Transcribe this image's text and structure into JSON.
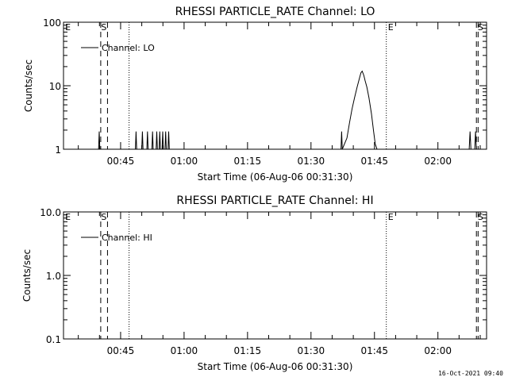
{
  "footer": {
    "timestamp": "16-Oct-2021 09:40"
  },
  "chart_data": [
    {
      "type": "line",
      "title": "RHESSI PARTICLE_RATE Channel: LO",
      "xlabel": "Start Time (06-Aug-06 00:31:30)",
      "ylabel": "Counts/sec",
      "x_unit": "minutes since 00:31:30",
      "xlim": [
        0,
        100
      ],
      "ylim": [
        1,
        100
      ],
      "yscale": "log",
      "x_ticks": [
        {
          "x": 13.5,
          "label": "00:45"
        },
        {
          "x": 28.5,
          "label": "01:00"
        },
        {
          "x": 43.5,
          "label": "01:15"
        },
        {
          "x": 58.5,
          "label": "01:30"
        },
        {
          "x": 73.5,
          "label": "01:45"
        },
        {
          "x": 88.5,
          "label": "02:00"
        }
      ],
      "y_ticks": [
        {
          "y": 1,
          "label": "1"
        },
        {
          "y": 10,
          "label": "10"
        },
        {
          "y": 100,
          "label": "100"
        }
      ],
      "legend": {
        "position": "top-left",
        "entries": [
          "Channel: LO"
        ]
      },
      "annotations": [
        {
          "label": "E",
          "x": 0.2
        },
        {
          "label": "S",
          "x": 8.7
        },
        {
          "label": "E",
          "x": 76.5
        },
        {
          "label": "S",
          "x": 97.7
        }
      ],
      "vlines": [
        {
          "x": 8.8,
          "style": "dashed"
        },
        {
          "x": 10.4,
          "style": "dashed"
        },
        {
          "x": 15.5,
          "style": "dotted"
        },
        {
          "x": 76.3,
          "style": "dotted"
        },
        {
          "x": 97.6,
          "style": "dashed"
        },
        {
          "x": 98.0,
          "style": "dashed"
        }
      ],
      "series": [
        {
          "name": "Channel: LO",
          "x": [
            0,
            8.3,
            8.45,
            8.6,
            17.0,
            17.15,
            17.3,
            18.5,
            18.65,
            18.8,
            19.7,
            19.85,
            20.0,
            20.9,
            21.05,
            21.2,
            21.9,
            22.05,
            22.2,
            22.6,
            22.75,
            22.9,
            23.3,
            23.45,
            23.6,
            24.0,
            24.15,
            24.3,
            24.7,
            24.85,
            25.0,
            65.6,
            65.75,
            65.9,
            67.0,
            67.6,
            68.2,
            68.8,
            69.4,
            70.0,
            70.3,
            70.6,
            71.0,
            71.3,
            71.7,
            72.2,
            72.8,
            73.3,
            73.7,
            74.1,
            95.9,
            96.1,
            96.3,
            97.2,
            97.4,
            97.6,
            100
          ],
          "y": [
            1,
            1,
            1.9,
            1,
            1,
            1.9,
            1,
            1,
            1.9,
            1,
            1,
            1.9,
            1,
            1,
            1.9,
            1,
            1,
            1.9,
            1,
            1,
            1.9,
            1,
            1,
            1.9,
            1,
            1,
            1.9,
            1,
            1,
            1.9,
            1,
            1,
            1.9,
            1,
            1.5,
            2.6,
            4.3,
            6.5,
            9.5,
            13.5,
            16.0,
            17.0,
            14.5,
            12.0,
            9.5,
            6.5,
            3.6,
            1.9,
            1.2,
            1,
            1,
            1.9,
            1,
            1,
            1.9,
            1,
            1
          ]
        }
      ]
    },
    {
      "type": "line",
      "title": "RHESSI PARTICLE_RATE Channel: HI",
      "xlabel": "Start Time (06-Aug-06 00:31:30)",
      "ylabel": "Counts/sec",
      "x_unit": "minutes since 00:31:30",
      "xlim": [
        0,
        100
      ],
      "ylim": [
        0.1,
        10
      ],
      "yscale": "log",
      "x_ticks": [
        {
          "x": 13.5,
          "label": "00:45"
        },
        {
          "x": 28.5,
          "label": "01:00"
        },
        {
          "x": 43.5,
          "label": "01:15"
        },
        {
          "x": 58.5,
          "label": "01:30"
        },
        {
          "x": 73.5,
          "label": "01:45"
        },
        {
          "x": 88.5,
          "label": "02:00"
        }
      ],
      "y_ticks": [
        {
          "y": 0.1,
          "label": "0.1"
        },
        {
          "y": 1,
          "label": "1.0"
        },
        {
          "y": 10,
          "label": "10.0"
        }
      ],
      "legend": {
        "position": "top-left",
        "entries": [
          "Channel: HI"
        ]
      },
      "annotations": [
        {
          "label": "E",
          "x": 0.2
        },
        {
          "label": "S",
          "x": 8.7
        },
        {
          "label": "E",
          "x": 76.5
        },
        {
          "label": "S",
          "x": 97.7
        }
      ],
      "vlines": [
        {
          "x": 8.8,
          "style": "dashed"
        },
        {
          "x": 10.4,
          "style": "dashed"
        },
        {
          "x": 15.5,
          "style": "dotted"
        },
        {
          "x": 76.3,
          "style": "dotted"
        },
        {
          "x": 97.6,
          "style": "dashed"
        },
        {
          "x": 98.0,
          "style": "dashed"
        }
      ],
      "series": [
        {
          "name": "Channel: HI",
          "x": [],
          "y": []
        }
      ]
    }
  ]
}
